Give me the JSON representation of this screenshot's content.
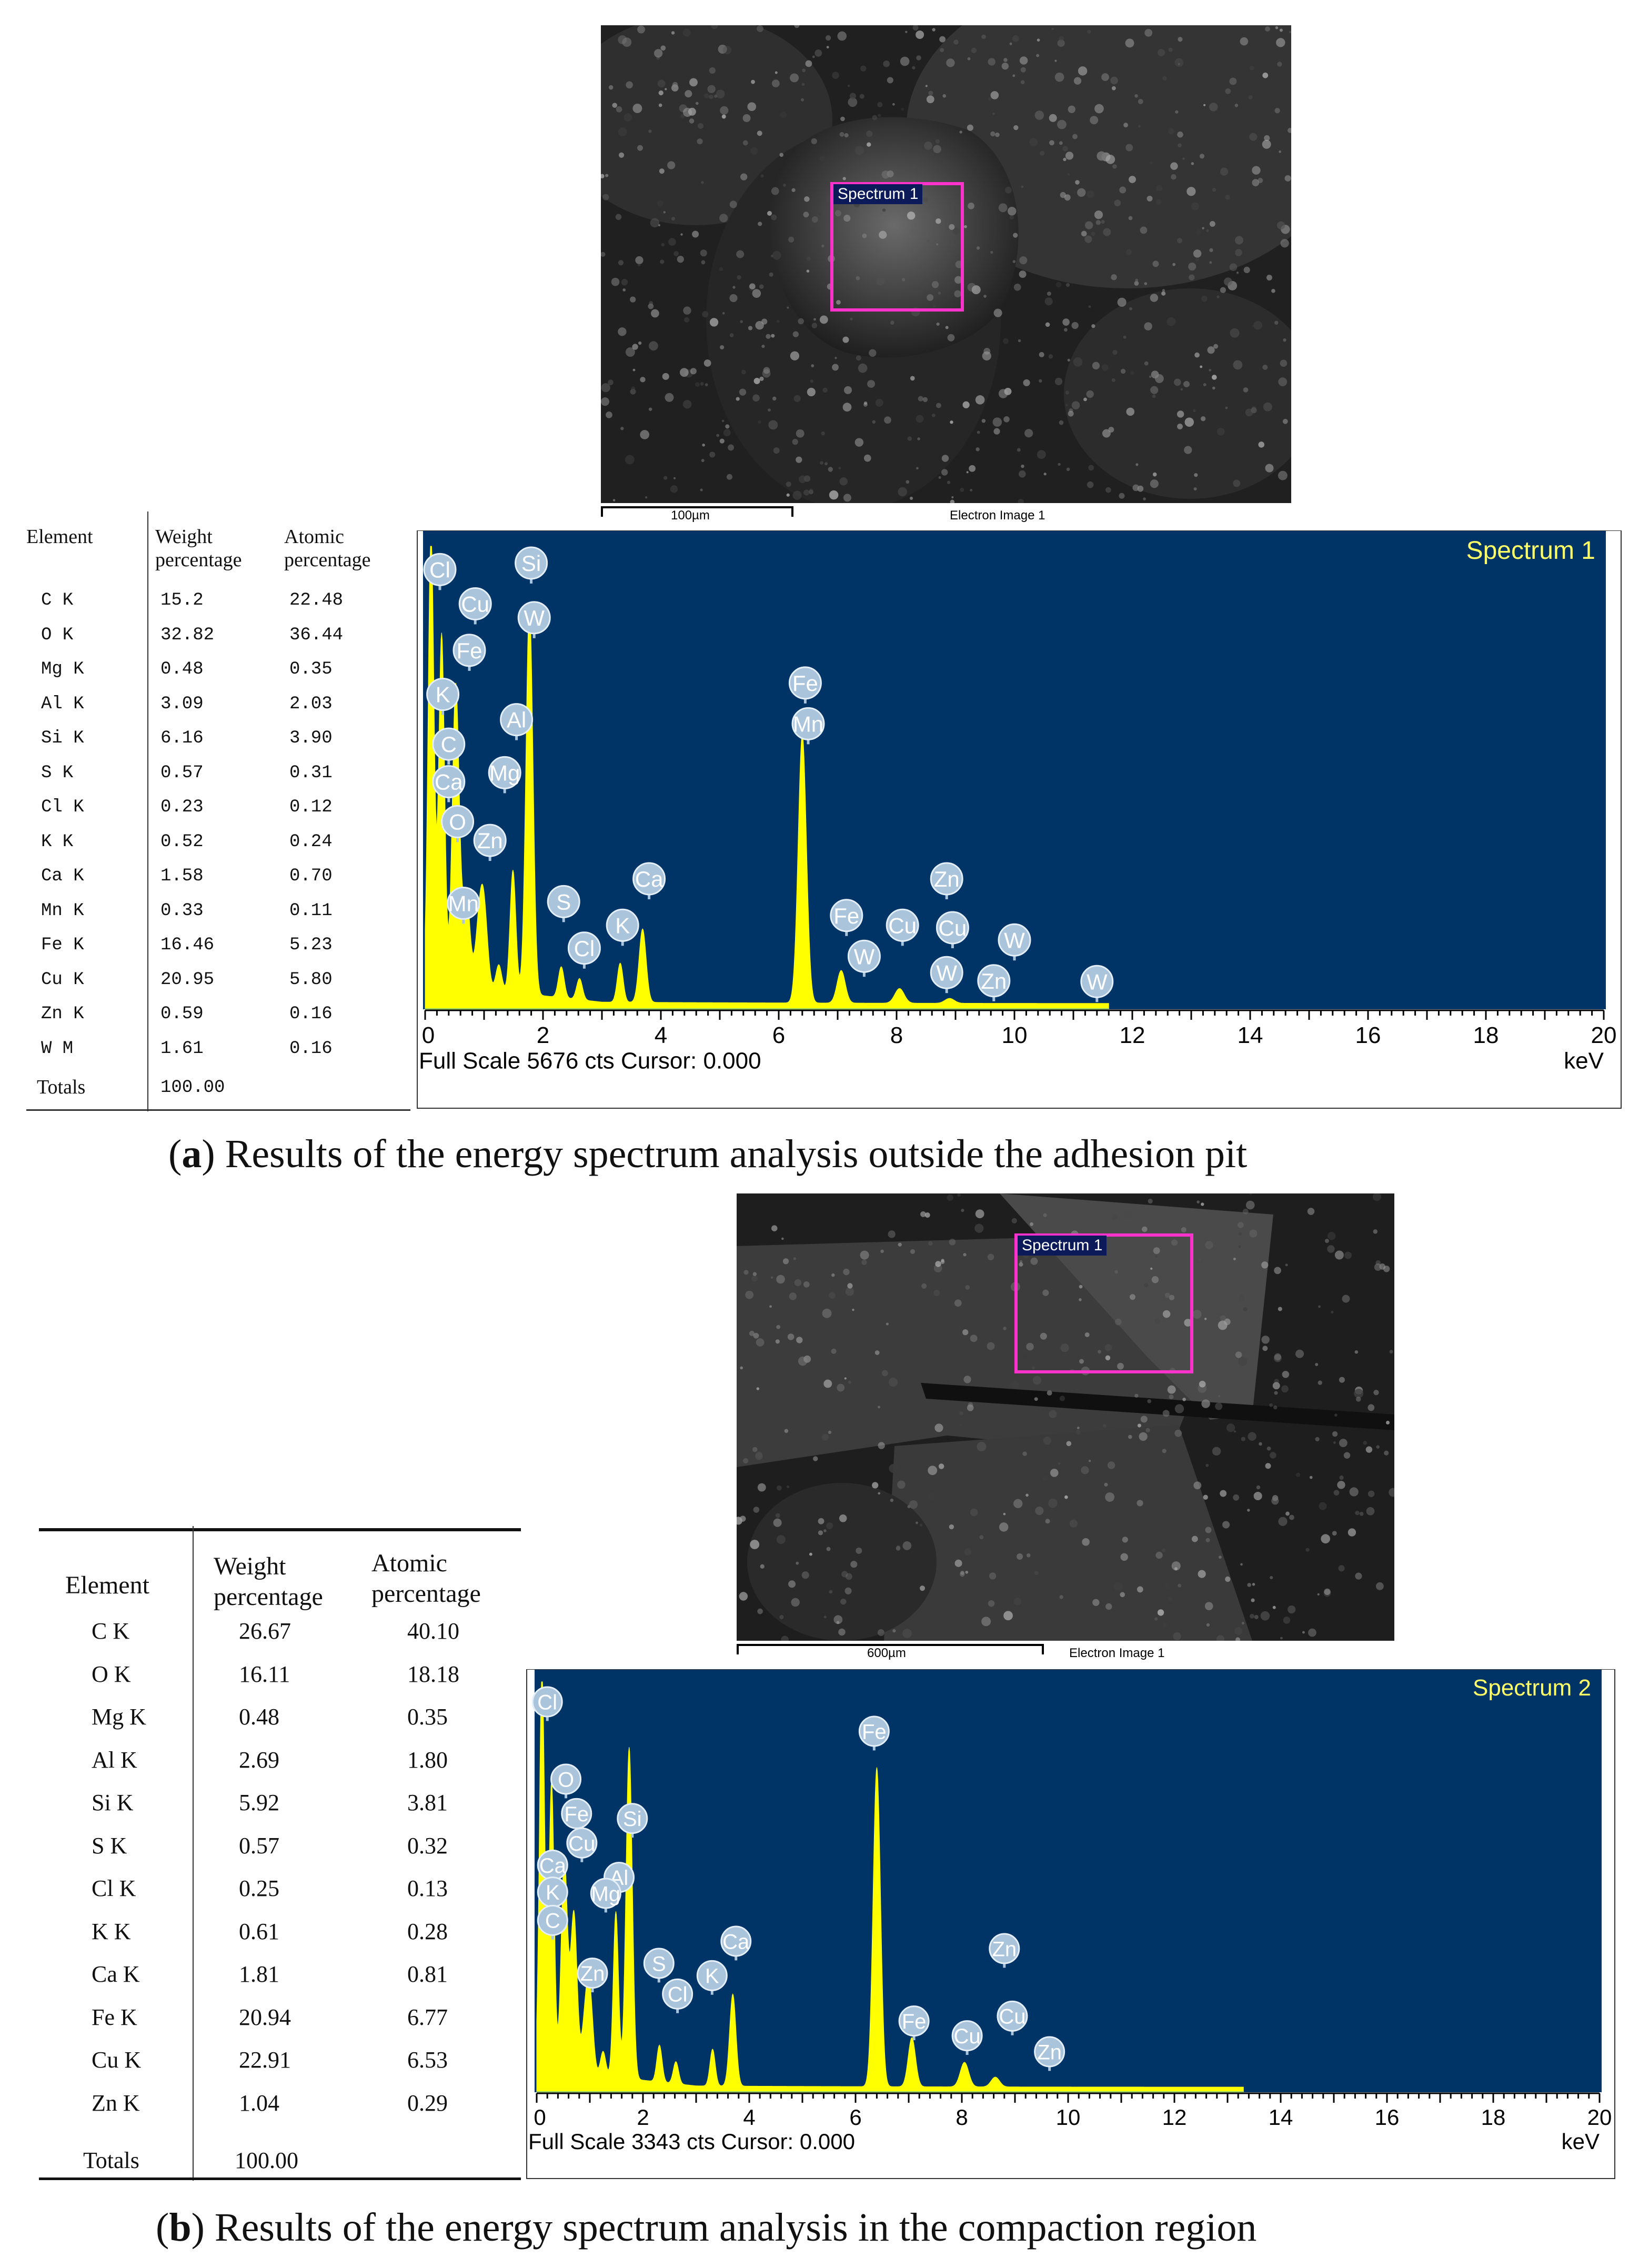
{
  "panel_a": {
    "caption_letter": "a",
    "caption_text": "Results of the energy spectrum analysis outside the adhesion pit",
    "image": {
      "roi_label": "Spectrum 1",
      "scale_text": "100µm",
      "image_label": "Electron Image 1"
    },
    "table": {
      "headers": [
        "Element",
        "Weight percentage",
        "Atomic percentage"
      ],
      "rows": [
        [
          "C K",
          "15.2",
          "22.48"
        ],
        [
          "O K",
          "32.82",
          "36.44"
        ],
        [
          "Mg K",
          "0.48",
          "0.35"
        ],
        [
          "Al K",
          "3.09",
          "2.03"
        ],
        [
          "Si K",
          "6.16",
          "3.90"
        ],
        [
          "S K",
          "0.57",
          "0.31"
        ],
        [
          "Cl K",
          "0.23",
          "0.12"
        ],
        [
          "K K",
          "0.52",
          "0.24"
        ],
        [
          "Ca K",
          "1.58",
          "0.70"
        ],
        [
          "Mn K",
          "0.33",
          "0.11"
        ],
        [
          "Fe K",
          "16.46",
          "5.23"
        ],
        [
          "Cu K",
          "20.95",
          "5.80"
        ],
        [
          "Zn K",
          "0.59",
          "0.16"
        ],
        [
          "W M",
          "1.61",
          "0.16"
        ]
      ],
      "totals": [
        "Totals",
        "100.00"
      ]
    }
  },
  "panel_b": {
    "caption_letter": "b",
    "caption_text": "Results of the energy spectrum analysis in the compaction region",
    "image": {
      "roi_label": "Spectrum 1",
      "scale_text": "600µm",
      "image_label": "Electron Image 1"
    },
    "table": {
      "headers": [
        "Element",
        "Weight percentage",
        "Atomic percentage"
      ],
      "rows": [
        [
          "C K",
          "26.67",
          "40.10"
        ],
        [
          "O K",
          "16.11",
          "18.18"
        ],
        [
          "Mg K",
          "0.48",
          "0.35"
        ],
        [
          "Al K",
          "2.69",
          "1.80"
        ],
        [
          "Si K",
          "5.92",
          "3.81"
        ],
        [
          "S K",
          "0.57",
          "0.32"
        ],
        [
          "Cl K",
          "0.25",
          "0.13"
        ],
        [
          "K K",
          "0.61",
          "0.28"
        ],
        [
          "Ca K",
          "1.81",
          "0.81"
        ],
        [
          "Fe K",
          "20.94",
          "6.77"
        ],
        [
          "Cu K",
          "22.91",
          "6.53"
        ],
        [
          "Zn K",
          "1.04",
          "0.29"
        ]
      ],
      "totals": [
        "Totals",
        "100.00"
      ]
    }
  },
  "colors": {
    "spectrum_bg": "#003366",
    "spectrum_fill": "#ffff00",
    "label_bubble": "#aac4dc",
    "roi": "#ff33cc",
    "title": "#ffff66"
  },
  "chart_data": [
    {
      "type": "area",
      "title": "Spectrum 1",
      "footer": "Full Scale 5676 cts Cursor: 0.000",
      "xlabel": "keV",
      "xlim": [
        0,
        20
      ],
      "ylim": [
        0,
        5676
      ],
      "xticks": [
        "0",
        "2",
        "4",
        "6",
        "8",
        "10",
        "12",
        "14",
        "16",
        "18",
        "20"
      ],
      "peaks": [
        {
          "x": 0.1,
          "y": 5600,
          "w": 0.05
        },
        {
          "x": 0.28,
          "y": 4300,
          "w": 0.05
        },
        {
          "x": 0.52,
          "y": 3700,
          "w": 0.06
        },
        {
          "x": 0.7,
          "y": 1150,
          "w": 0.06
        },
        {
          "x": 0.93,
          "y": 900,
          "w": 0.07
        },
        {
          "x": 1.01,
          "y": 650,
          "w": 0.06
        },
        {
          "x": 1.25,
          "y": 320,
          "w": 0.05
        },
        {
          "x": 1.49,
          "y": 1500,
          "w": 0.05
        },
        {
          "x": 1.77,
          "y": 4800,
          "w": 0.06
        },
        {
          "x": 2.31,
          "y": 380,
          "w": 0.05
        },
        {
          "x": 2.62,
          "y": 260,
          "w": 0.05
        },
        {
          "x": 3.31,
          "y": 480,
          "w": 0.05
        },
        {
          "x": 3.69,
          "y": 900,
          "w": 0.06
        },
        {
          "x": 6.4,
          "y": 3300,
          "w": 0.07
        },
        {
          "x": 7.06,
          "y": 400,
          "w": 0.07
        },
        {
          "x": 8.05,
          "y": 180,
          "w": 0.08
        },
        {
          "x": 8.9,
          "y": 60,
          "w": 0.08
        }
      ],
      "tail_end_kev": 11.6,
      "labels": [
        {
          "text": "Cl",
          "x": 0.25,
          "y": 5390
        },
        {
          "text": "Cu",
          "x": 0.85,
          "y": 4970
        },
        {
          "text": "Fe",
          "x": 0.75,
          "y": 4400
        },
        {
          "text": "K",
          "x": 0.3,
          "y": 3860
        },
        {
          "text": "C",
          "x": 0.4,
          "y": 3250
        },
        {
          "text": "Ca",
          "x": 0.4,
          "y": 2790
        },
        {
          "text": "O",
          "x": 0.55,
          "y": 2300
        },
        {
          "text": "Si",
          "x": 1.8,
          "y": 5470
        },
        {
          "text": "W",
          "x": 1.85,
          "y": 4800
        },
        {
          "text": "Al",
          "x": 1.55,
          "y": 3550
        },
        {
          "text": "Mg",
          "x": 1.35,
          "y": 2900
        },
        {
          "text": "Zn",
          "x": 1.1,
          "y": 2070
        },
        {
          "text": "Mn",
          "x": 0.65,
          "y": 1300
        },
        {
          "text": "S",
          "x": 2.35,
          "y": 1320
        },
        {
          "text": "Cl",
          "x": 2.7,
          "y": 750
        },
        {
          "text": "K",
          "x": 3.35,
          "y": 1030
        },
        {
          "text": "Ca",
          "x": 3.8,
          "y": 1600
        },
        {
          "text": "Fe",
          "x": 6.45,
          "y": 4000
        },
        {
          "text": "Mn",
          "x": 6.5,
          "y": 3500
        },
        {
          "text": "Fe",
          "x": 7.15,
          "y": 1150
        },
        {
          "text": "W",
          "x": 7.45,
          "y": 650
        },
        {
          "text": "Cu",
          "x": 8.1,
          "y": 1030
        },
        {
          "text": "Cu",
          "x": 8.95,
          "y": 1000
        },
        {
          "text": "Zn",
          "x": 8.85,
          "y": 1600
        },
        {
          "text": "W",
          "x": 8.85,
          "y": 450
        },
        {
          "text": "Zn",
          "x": 9.65,
          "y": 350
        },
        {
          "text": "W",
          "x": 10.0,
          "y": 850
        },
        {
          "text": "W",
          "x": 11.4,
          "y": 340
        }
      ]
    },
    {
      "type": "area",
      "title": "Spectrum 2",
      "footer": "Full Scale 3343 cts Cursor: 0.000",
      "xlabel": "keV",
      "xlim": [
        0,
        20
      ],
      "ylim": [
        0,
        3343
      ],
      "xticks": [
        "0",
        "2",
        "4",
        "6",
        "8",
        "10",
        "12",
        "14",
        "16",
        "18",
        "20"
      ],
      "peaks": [
        {
          "x": 0.1,
          "y": 3300,
          "w": 0.05
        },
        {
          "x": 0.28,
          "y": 2350,
          "w": 0.05
        },
        {
          "x": 0.52,
          "y": 1750,
          "w": 0.06
        },
        {
          "x": 0.7,
          "y": 1300,
          "w": 0.06
        },
        {
          "x": 0.93,
          "y": 520,
          "w": 0.07
        },
        {
          "x": 1.01,
          "y": 450,
          "w": 0.06
        },
        {
          "x": 1.25,
          "y": 200,
          "w": 0.05
        },
        {
          "x": 1.49,
          "y": 1350,
          "w": 0.05
        },
        {
          "x": 1.74,
          "y": 2700,
          "w": 0.06
        },
        {
          "x": 2.31,
          "y": 300,
          "w": 0.05
        },
        {
          "x": 2.62,
          "y": 180,
          "w": 0.05
        },
        {
          "x": 3.31,
          "y": 300,
          "w": 0.05
        },
        {
          "x": 3.69,
          "y": 750,
          "w": 0.06
        },
        {
          "x": 6.4,
          "y": 2600,
          "w": 0.07
        },
        {
          "x": 7.06,
          "y": 400,
          "w": 0.07
        },
        {
          "x": 8.05,
          "y": 200,
          "w": 0.08
        },
        {
          "x": 8.63,
          "y": 80,
          "w": 0.08
        }
      ],
      "tail_end_kev": 13.3,
      "labels": [
        {
          "text": "Cl",
          "x": 0.2,
          "y": 3180
        },
        {
          "text": "O",
          "x": 0.55,
          "y": 2550
        },
        {
          "text": "Fe",
          "x": 0.75,
          "y": 2270
        },
        {
          "text": "Si",
          "x": 1.8,
          "y": 2230
        },
        {
          "text": "Cu",
          "x": 0.85,
          "y": 2030
        },
        {
          "text": "Ca",
          "x": 0.3,
          "y": 1850
        },
        {
          "text": "Al",
          "x": 1.55,
          "y": 1750
        },
        {
          "text": "K",
          "x": 0.3,
          "y": 1630
        },
        {
          "text": "Mg",
          "x": 1.3,
          "y": 1620
        },
        {
          "text": "C",
          "x": 0.3,
          "y": 1400
        },
        {
          "text": "Fe",
          "x": 6.35,
          "y": 2940
        },
        {
          "text": "Zn",
          "x": 1.05,
          "y": 970
        },
        {
          "text": "S",
          "x": 2.3,
          "y": 1050
        },
        {
          "text": "Cl",
          "x": 2.65,
          "y": 800
        },
        {
          "text": "K",
          "x": 3.3,
          "y": 950
        },
        {
          "text": "Ca",
          "x": 3.75,
          "y": 1230
        },
        {
          "text": "Fe",
          "x": 7.1,
          "y": 580
        },
        {
          "text": "Cu",
          "x": 8.1,
          "y": 460
        },
        {
          "text": "Zn",
          "x": 8.8,
          "y": 1170
        },
        {
          "text": "Cu",
          "x": 8.95,
          "y": 620
        },
        {
          "text": "Zn",
          "x": 9.65,
          "y": 330
        }
      ]
    }
  ]
}
